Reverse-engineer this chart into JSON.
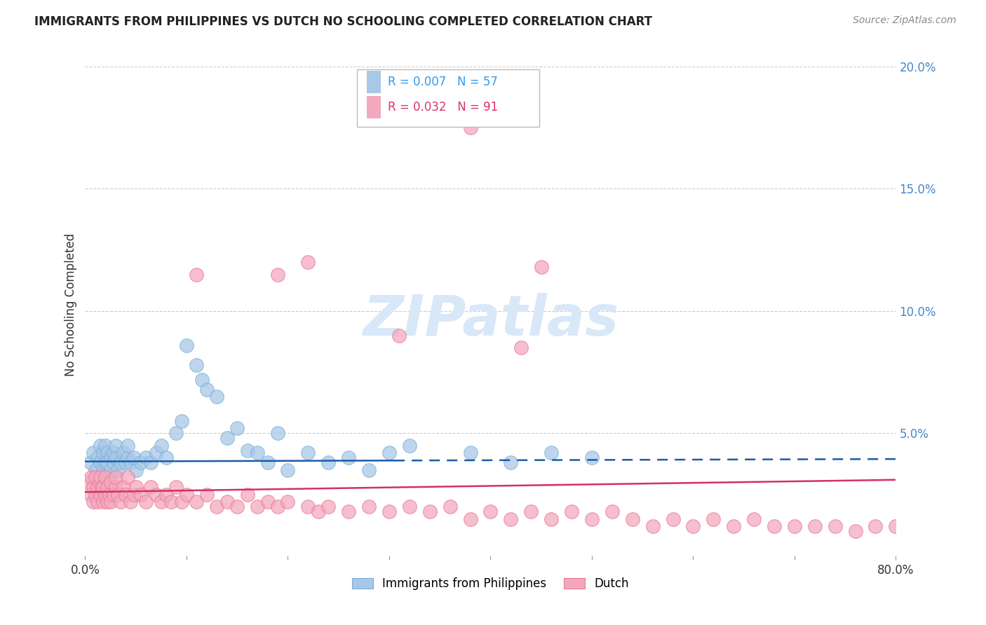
{
  "title": "IMMIGRANTS FROM PHILIPPINES VS DUTCH NO SCHOOLING COMPLETED CORRELATION CHART",
  "source": "Source: ZipAtlas.com",
  "ylabel": "No Schooling Completed",
  "xlim": [
    0,
    0.8
  ],
  "ylim": [
    0,
    0.205
  ],
  "xticks": [
    0.0,
    0.1,
    0.2,
    0.3,
    0.4,
    0.5,
    0.6,
    0.7,
    0.8
  ],
  "xticklabels": [
    "0.0%",
    "",
    "",
    "",
    "",
    "",
    "",
    "",
    "80.0%"
  ],
  "yticks": [
    0.0,
    0.05,
    0.1,
    0.15,
    0.2
  ],
  "yticklabels": [
    "",
    "5.0%",
    "10.0%",
    "15.0%",
    "20.0%"
  ],
  "grid_color": "#cccccc",
  "background_color": "#ffffff",
  "series1_label": "Immigrants from Philippines",
  "series1_color": "#a8c8e8",
  "series1_edge_color": "#7aafd4",
  "series1_R": "0.007",
  "series1_N": "57",
  "series2_label": "Dutch",
  "series2_color": "#f4a8be",
  "series2_edge_color": "#e87898",
  "series2_R": "0.032",
  "series2_N": "91",
  "trendline1_color": "#1a5ca8",
  "trendline2_color": "#d43060",
  "watermark_color": "#d8e8f8",
  "series1_x": [
    0.005,
    0.008,
    0.01,
    0.012,
    0.015,
    0.015,
    0.018,
    0.018,
    0.02,
    0.02,
    0.022,
    0.022,
    0.025,
    0.025,
    0.028,
    0.028,
    0.03,
    0.03,
    0.032,
    0.035,
    0.038,
    0.04,
    0.042,
    0.042,
    0.045,
    0.048,
    0.05,
    0.055,
    0.06,
    0.065,
    0.07,
    0.075,
    0.08,
    0.09,
    0.095,
    0.1,
    0.11,
    0.115,
    0.12,
    0.13,
    0.14,
    0.15,
    0.16,
    0.17,
    0.18,
    0.19,
    0.2,
    0.22,
    0.24,
    0.26,
    0.28,
    0.3,
    0.32,
    0.38,
    0.42,
    0.46,
    0.5
  ],
  "series1_y": [
    0.038,
    0.042,
    0.035,
    0.04,
    0.038,
    0.045,
    0.042,
    0.035,
    0.038,
    0.045,
    0.042,
    0.038,
    0.04,
    0.035,
    0.038,
    0.042,
    0.04,
    0.045,
    0.035,
    0.038,
    0.042,
    0.038,
    0.04,
    0.045,
    0.038,
    0.04,
    0.035,
    0.038,
    0.04,
    0.038,
    0.042,
    0.045,
    0.04,
    0.05,
    0.055,
    0.086,
    0.078,
    0.072,
    0.068,
    0.065,
    0.048,
    0.052,
    0.043,
    0.042,
    0.038,
    0.05,
    0.035,
    0.042,
    0.038,
    0.04,
    0.035,
    0.042,
    0.045,
    0.042,
    0.038,
    0.042,
    0.04
  ],
  "series2_x": [
    0.003,
    0.005,
    0.006,
    0.008,
    0.008,
    0.01,
    0.01,
    0.012,
    0.012,
    0.014,
    0.015,
    0.015,
    0.016,
    0.018,
    0.018,
    0.02,
    0.02,
    0.022,
    0.022,
    0.024,
    0.025,
    0.025,
    0.028,
    0.03,
    0.03,
    0.032,
    0.035,
    0.038,
    0.04,
    0.042,
    0.045,
    0.048,
    0.05,
    0.055,
    0.06,
    0.065,
    0.07,
    0.075,
    0.08,
    0.085,
    0.09,
    0.095,
    0.1,
    0.11,
    0.12,
    0.13,
    0.14,
    0.15,
    0.16,
    0.17,
    0.18,
    0.19,
    0.2,
    0.22,
    0.23,
    0.24,
    0.26,
    0.28,
    0.3,
    0.32,
    0.34,
    0.36,
    0.38,
    0.4,
    0.42,
    0.44,
    0.46,
    0.48,
    0.5,
    0.52,
    0.54,
    0.56,
    0.58,
    0.6,
    0.62,
    0.64,
    0.66,
    0.68,
    0.7,
    0.72,
    0.74,
    0.76,
    0.78,
    0.8,
    0.22,
    0.31,
    0.43,
    0.38,
    0.45,
    0.19,
    0.11
  ],
  "series2_y": [
    0.03,
    0.025,
    0.032,
    0.022,
    0.028,
    0.025,
    0.032,
    0.028,
    0.022,
    0.03,
    0.025,
    0.032,
    0.028,
    0.022,
    0.028,
    0.025,
    0.032,
    0.022,
    0.028,
    0.025,
    0.03,
    0.022,
    0.025,
    0.028,
    0.032,
    0.025,
    0.022,
    0.028,
    0.025,
    0.032,
    0.022,
    0.025,
    0.028,
    0.025,
    0.022,
    0.028,
    0.025,
    0.022,
    0.025,
    0.022,
    0.028,
    0.022,
    0.025,
    0.022,
    0.025,
    0.02,
    0.022,
    0.02,
    0.025,
    0.02,
    0.022,
    0.02,
    0.022,
    0.02,
    0.018,
    0.02,
    0.018,
    0.02,
    0.018,
    0.02,
    0.018,
    0.02,
    0.015,
    0.018,
    0.015,
    0.018,
    0.015,
    0.018,
    0.015,
    0.018,
    0.015,
    0.012,
    0.015,
    0.012,
    0.015,
    0.012,
    0.015,
    0.012,
    0.012,
    0.012,
    0.012,
    0.01,
    0.012,
    0.012,
    0.12,
    0.09,
    0.085,
    0.175,
    0.118,
    0.115,
    0.115
  ]
}
